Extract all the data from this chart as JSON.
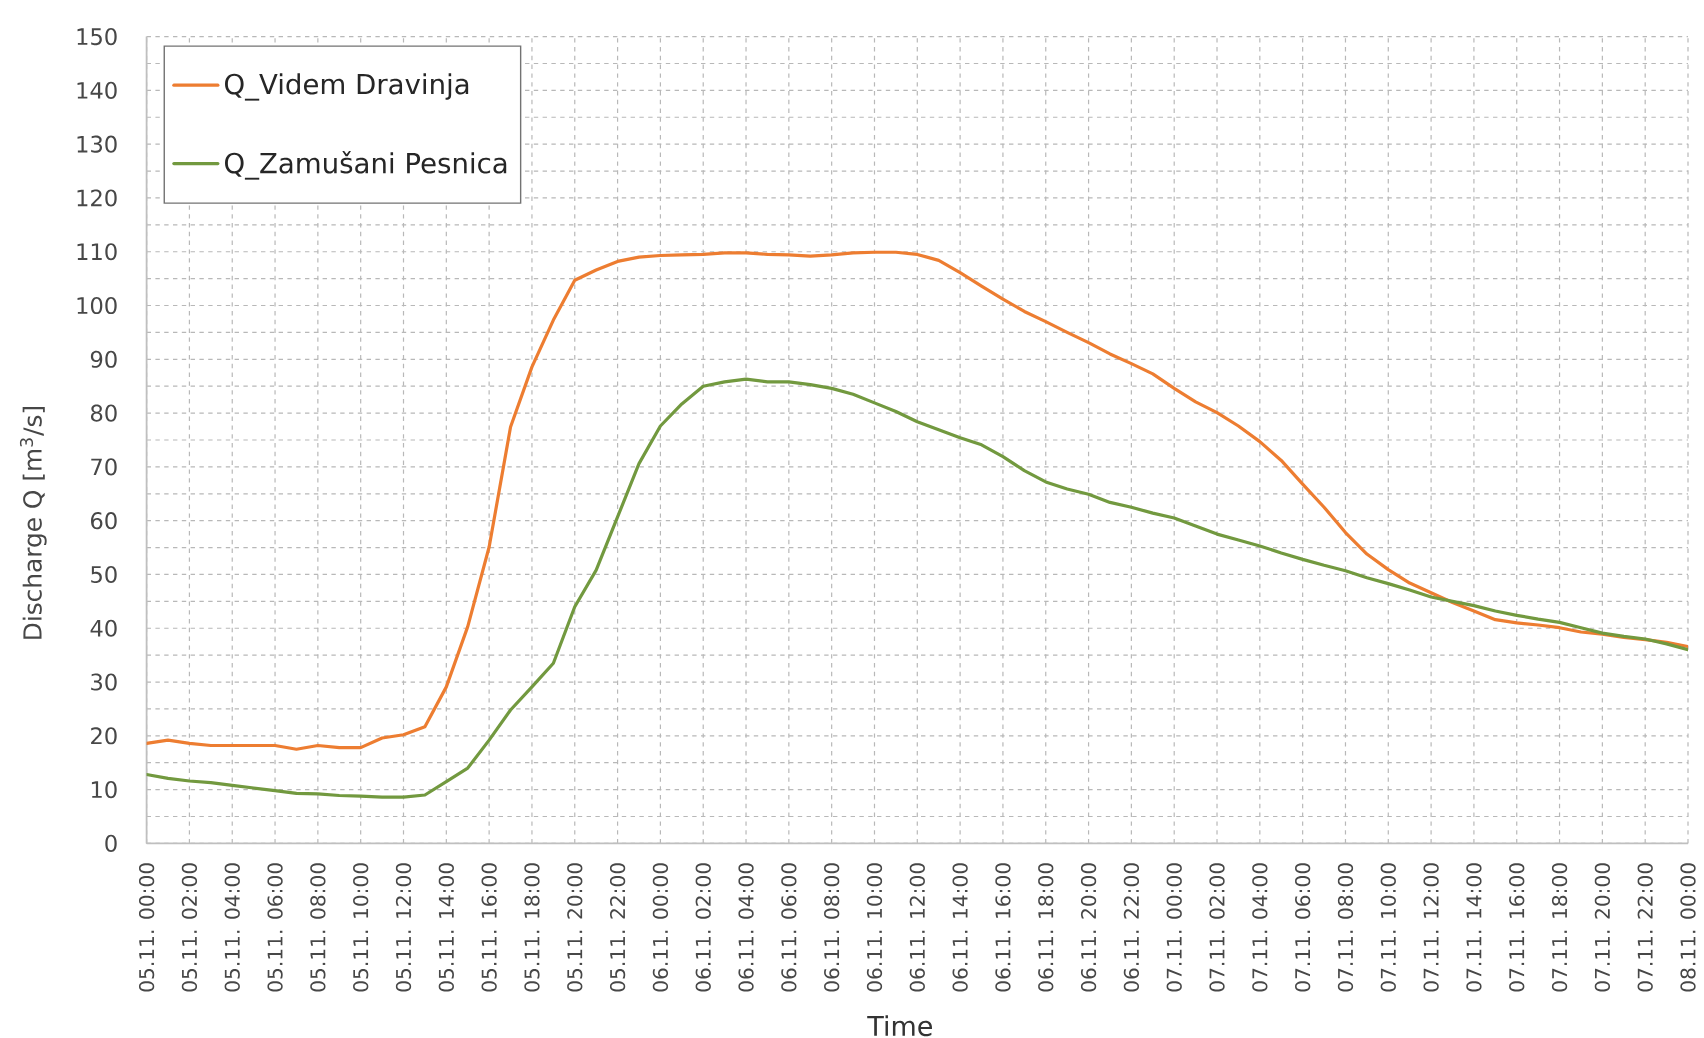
{
  "chart_data": {
    "type": "line",
    "xlabel": "Time",
    "ylabel": "Discharge Q [m$^{3}$/s]",
    "categories": [
      "05.11. 00:00",
      null,
      "05.11. 02:00",
      null,
      "05.11. 04:00",
      null,
      "05.11. 06:00",
      null,
      "05.11. 08:00",
      null,
      "05.11. 10:00",
      null,
      "05.11. 12:00",
      null,
      "05.11. 14:00",
      null,
      "05.11. 16:00",
      null,
      "05.11. 18:00",
      null,
      "05.11. 20:00",
      null,
      "05.11. 22:00",
      null,
      "06.11. 00:00",
      null,
      "06.11. 02:00",
      null,
      "06.11. 04:00",
      null,
      "06.11. 06:00",
      null,
      "06.11. 08:00",
      null,
      "06.11. 10:00",
      null,
      "06.11. 12:00",
      null,
      "06.11. 14:00",
      null,
      "06.11. 16:00",
      null,
      "06.11. 18:00",
      null,
      "06.11. 20:00",
      null,
      "06.11. 22:00",
      null,
      "07.11. 00:00",
      null,
      "07.11. 02:00",
      null,
      "07.11. 04:00",
      null,
      "07.11. 06:00",
      null,
      "07.11. 08:00",
      null,
      "07.11. 10:00",
      null,
      "07.11. 12:00",
      null,
      "07.11. 14:00",
      null,
      "07.11. 16:00",
      null,
      "07.11. 18:00",
      null,
      "07.11. 20:00",
      null,
      "07.11. 22:00",
      null,
      "08.11. 00:00"
    ],
    "series": [
      {
        "name": "Q_Videm Dravinja",
        "color": "#ed7d31",
        "values": [
          18.6,
          19.2,
          18.6,
          18.2,
          18.2,
          18.2,
          18.2,
          17.5,
          18.2,
          17.8,
          17.8,
          19.6,
          20.2,
          21.7,
          29.1,
          40.3,
          55.1,
          77.4,
          88.6,
          97.3,
          104.7,
          106.6,
          108.2,
          109.0,
          109.3,
          109.4,
          109.5,
          109.8,
          109.8,
          109.5,
          109.4,
          109.2,
          109.4,
          109.8,
          109.9,
          109.9,
          109.5,
          108.4,
          106.1,
          103.6,
          101.2,
          98.9,
          97.0,
          95.0,
          93.1,
          91.0,
          89.2,
          87.3,
          84.6,
          82.1,
          80.1,
          77.6,
          74.7,
          71.2,
          66.8,
          62.5,
          57.8,
          53.8,
          50.9,
          48.4,
          46.6,
          44.8,
          43.2,
          41.6,
          41.0,
          40.6,
          40.1,
          39.3,
          38.9,
          38.3,
          37.9,
          37.4,
          36.6
        ]
      },
      {
        "name": "Q_Zamušani Pesnica",
        "color": "#72993f",
        "values": [
          12.8,
          12.1,
          11.6,
          11.3,
          10.8,
          10.3,
          9.8,
          9.3,
          9.2,
          8.9,
          8.8,
          8.6,
          8.6,
          9.0,
          11.5,
          14.0,
          19.2,
          24.8,
          29.1,
          33.5,
          44.0,
          50.8,
          60.7,
          70.6,
          77.6,
          81.7,
          85.0,
          85.8,
          86.3,
          85.8,
          85.8,
          85.3,
          84.6,
          83.5,
          81.9,
          80.3,
          78.4,
          76.9,
          75.4,
          74.1,
          71.9,
          69.3,
          67.2,
          65.9,
          64.9,
          63.4,
          62.5,
          61.4,
          60.5,
          59.0,
          57.5,
          56.4,
          55.3,
          54.0,
          52.8,
          51.7,
          50.7,
          49.4,
          48.3,
          47.1,
          45.8,
          45.0,
          44.2,
          43.2,
          42.4,
          41.7,
          41.1,
          40.1,
          39.1,
          38.5,
          38.0,
          37.1,
          36.0
        ]
      }
    ],
    "ylim": [
      0,
      150
    ],
    "yticks": [
      0,
      {
        "value": 5,
        "label": null
      },
      10,
      {
        "value": 15,
        "label": null
      },
      20,
      {
        "value": 25,
        "label": null
      },
      30,
      {
        "value": 35,
        "label": null
      },
      40,
      {
        "value": 45,
        "label": null
      },
      50,
      {
        "value": 55,
        "label": null
      },
      60,
      {
        "value": 65,
        "label": null
      },
      70,
      {
        "value": 75,
        "label": null
      },
      80,
      {
        "value": 85,
        "label": null
      },
      90,
      {
        "value": 95,
        "label": null
      },
      100,
      {
        "value": 105,
        "label": null
      },
      110,
      {
        "value": 115,
        "label": null
      },
      120,
      {
        "value": 125,
        "label": null
      },
      130,
      {
        "value": 135,
        "label": null
      },
      140,
      {
        "value": 145,
        "label": null
      },
      150
    ],
    "grid": true,
    "legend": "top left"
  }
}
